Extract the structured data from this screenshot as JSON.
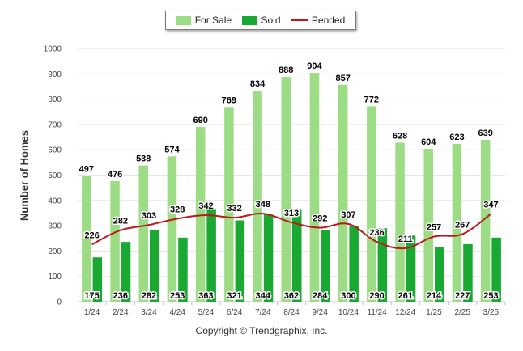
{
  "chart_data": {
    "type": "bar",
    "ylabel": "Number of Homes",
    "xlabel": "",
    "ylim": [
      0,
      1000
    ],
    "yticks": [
      0,
      100,
      200,
      300,
      400,
      500,
      600,
      700,
      800,
      900,
      1000
    ],
    "grid": true,
    "legend_position": "top-center",
    "categories": [
      "1/24",
      "2/24",
      "3/24",
      "4/24",
      "5/24",
      "6/24",
      "7/24",
      "8/24",
      "9/24",
      "10/24",
      "11/24",
      "12/24",
      "1/25",
      "2/25",
      "3/25"
    ],
    "series": [
      {
        "name": "For Sale",
        "type": "bar",
        "color": "#9bdc84",
        "values": [
          497,
          476,
          538,
          574,
          690,
          769,
          834,
          888,
          904,
          857,
          772,
          628,
          604,
          623,
          639
        ]
      },
      {
        "name": "Sold",
        "type": "bar",
        "color": "#19a832",
        "values": [
          175,
          236,
          282,
          253,
          363,
          321,
          344,
          362,
          284,
          300,
          290,
          261,
          214,
          227,
          253
        ]
      },
      {
        "name": "Pended",
        "type": "line",
        "color": "#c0161c",
        "values": [
          226,
          282,
          303,
          328,
          342,
          332,
          348,
          313,
          292,
          307,
          236,
          211,
          257,
          267,
          347
        ]
      }
    ]
  },
  "footer": "Copyright © Trendgraphix, Inc."
}
